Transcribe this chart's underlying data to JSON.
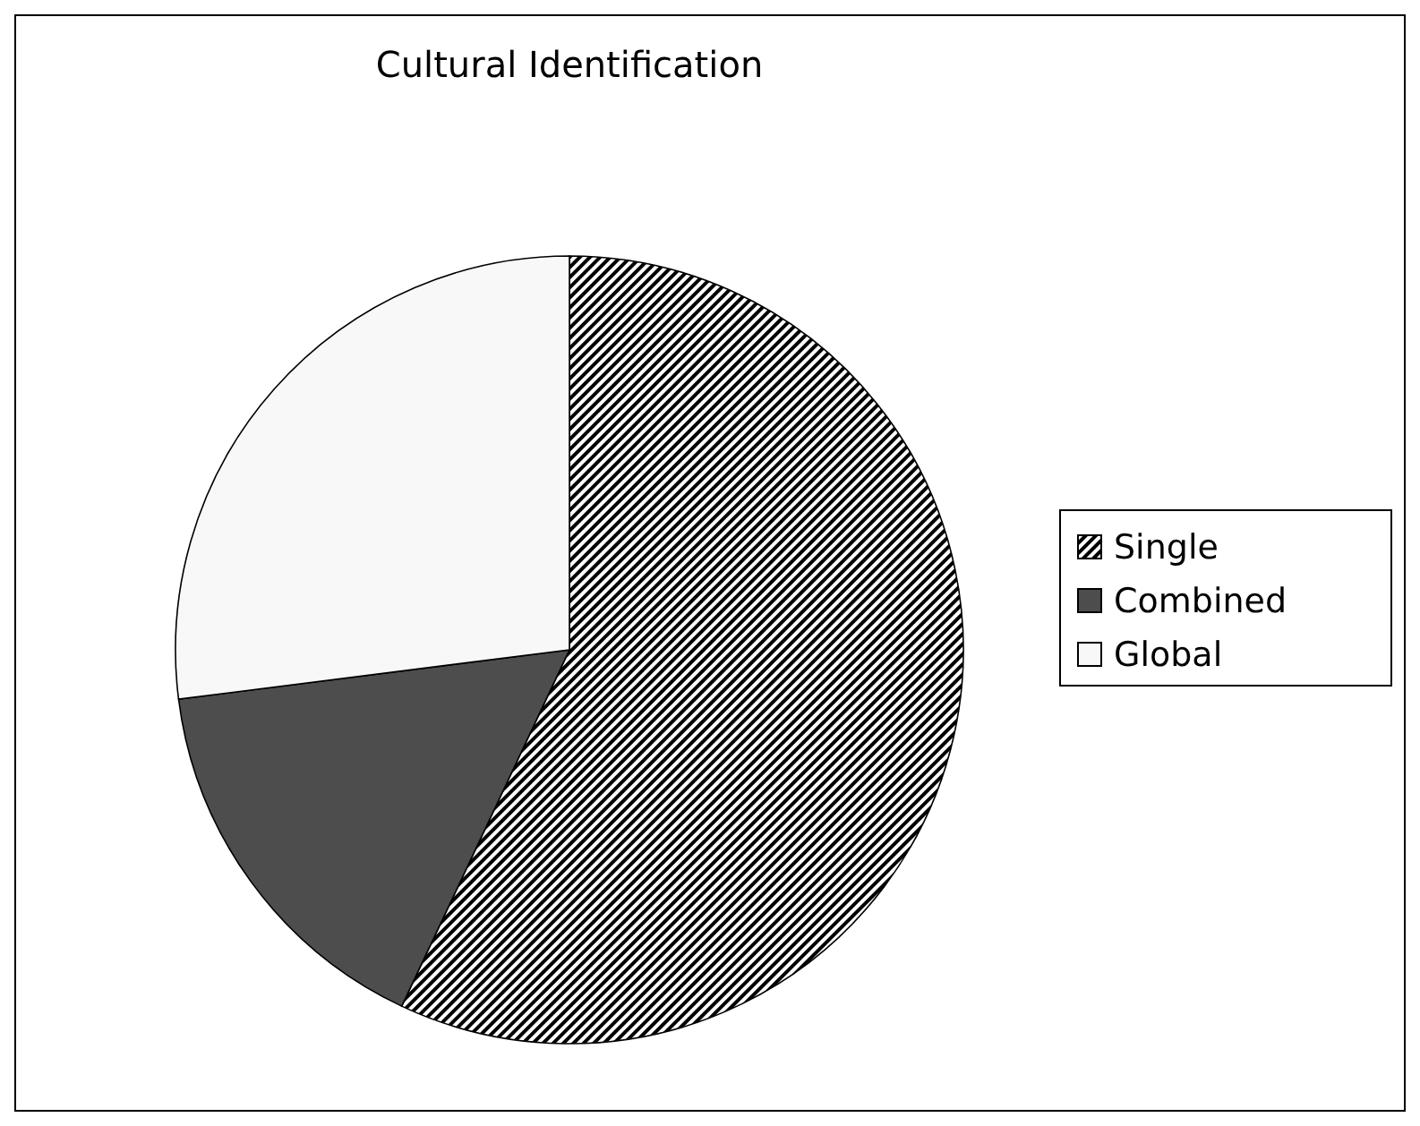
{
  "chart_data": {
    "type": "pie",
    "title": "Cultural Identification",
    "categories": [
      "Single",
      "Combined",
      "Global"
    ],
    "values": [
      57,
      16,
      27
    ],
    "colors": [
      "#000000",
      "#4d4d4d",
      "#f8f8f8"
    ],
    "legend": "right"
  }
}
